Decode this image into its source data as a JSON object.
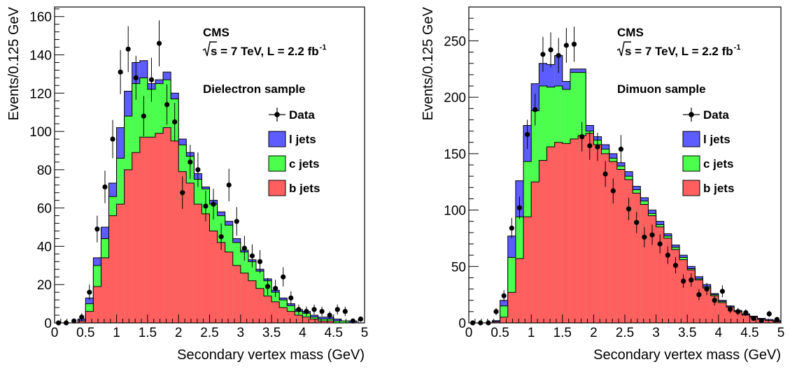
{
  "chart_data": [
    {
      "type": "bar",
      "stacked": true,
      "experiment": "CMS",
      "energy_label": "s = 7 TeV, L = 2.2 fb",
      "lumi_exponent": "-1",
      "sample_label": "Dielectron sample",
      "xlabel": "Secondary vertex mass (GeV)",
      "ylabel": "Events/0.125 GeV",
      "xlim": [
        0,
        5
      ],
      "ylim": [
        0,
        165
      ],
      "bin_width": 0.125,
      "xticks": [
        0,
        0.5,
        1,
        1.5,
        2,
        2.5,
        3,
        3.5,
        4,
        4.5,
        5
      ],
      "xtick_labels": [
        "0",
        "0.5",
        "1",
        "1.5",
        "2",
        "2.5",
        "3",
        "3.5",
        "4",
        "4.5",
        "5"
      ],
      "yticks": [
        0,
        20,
        40,
        60,
        80,
        100,
        120,
        140,
        160
      ],
      "ytick_labels": [
        "0",
        "20",
        "40",
        "60",
        "80",
        "100",
        "120",
        "140",
        "160"
      ],
      "legend_position": "right",
      "legend": [
        {
          "name": "Data",
          "kind": "marker"
        },
        {
          "name": "l jets",
          "kind": "box",
          "color": "#5c5cff"
        },
        {
          "name": "c jets",
          "kind": "box",
          "color": "#4dff4d"
        },
        {
          "name": "b jets",
          "kind": "box",
          "color": "#ff5f5f"
        }
      ],
      "stack_totals": {
        "b": [
          0,
          0,
          0,
          1,
          6,
          19,
          34,
          56,
          62,
          80,
          89,
          97,
          97,
          99,
          102,
          95,
          79,
          73,
          62,
          57,
          48,
          42,
          37,
          30,
          26,
          22,
          18,
          14,
          11,
          8,
          6,
          4,
          3,
          2,
          1,
          1,
          0,
          0,
          0,
          0
        ],
        "bc": [
          0,
          0,
          0,
          1,
          10,
          30,
          44,
          66,
          86,
          108,
          125,
          128,
          122,
          125,
          127,
          117,
          93,
          87,
          75,
          70,
          62,
          56,
          51,
          42,
          37,
          32,
          27,
          22,
          16,
          12,
          9,
          6,
          5,
          3,
          2,
          2,
          1,
          1,
          0,
          0
        ],
        "total": [
          0,
          0,
          0,
          2,
          13,
          34,
          50,
          73,
          102,
          121,
          136,
          137,
          125,
          127,
          131,
          120,
          96,
          89,
          78,
          71,
          64,
          58,
          53,
          44,
          38,
          33,
          28,
          23,
          17,
          13,
          10,
          7,
          6,
          4,
          3,
          3,
          2,
          1,
          1,
          0
        ]
      },
      "data_points": [
        {
          "x": 0.0625,
          "y": 0,
          "err": 0
        },
        {
          "x": 0.1875,
          "y": 0,
          "err": 0
        },
        {
          "x": 0.3125,
          "y": 1,
          "err": 1
        },
        {
          "x": 0.4375,
          "y": 3,
          "err": 2
        },
        {
          "x": 0.5625,
          "y": 16,
          "err": 4
        },
        {
          "x": 0.6875,
          "y": 49,
          "err": 7
        },
        {
          "x": 0.8125,
          "y": 71,
          "err": 8.5
        },
        {
          "x": 0.9375,
          "y": 96,
          "err": 10
        },
        {
          "x": 1.0625,
          "y": 131,
          "err": 11.5
        },
        {
          "x": 1.1875,
          "y": 143,
          "err": 12
        },
        {
          "x": 1.3125,
          "y": 128,
          "err": 11.5
        },
        {
          "x": 1.4375,
          "y": 108,
          "err": 10.5
        },
        {
          "x": 1.5625,
          "y": 127,
          "err": 11.5
        },
        {
          "x": 1.6875,
          "y": 146,
          "err": 12
        },
        {
          "x": 1.8125,
          "y": 114,
          "err": 10.5
        },
        {
          "x": 1.9375,
          "y": 105,
          "err": 10
        },
        {
          "x": 2.0625,
          "y": 68,
          "err": 8.5
        },
        {
          "x": 2.1875,
          "y": 84,
          "err": 9
        },
        {
          "x": 2.3125,
          "y": 80,
          "err": 9
        },
        {
          "x": 2.4375,
          "y": 61,
          "err": 8
        },
        {
          "x": 2.5625,
          "y": 62,
          "err": 8
        },
        {
          "x": 2.6875,
          "y": 45,
          "err": 7
        },
        {
          "x": 2.8125,
          "y": 72,
          "err": 8.5
        },
        {
          "x": 2.9375,
          "y": 53,
          "err": 7.5
        },
        {
          "x": 3.0625,
          "y": 39,
          "err": 6.5
        },
        {
          "x": 3.1875,
          "y": 35,
          "err": 6
        },
        {
          "x": 3.3125,
          "y": 32,
          "err": 6
        },
        {
          "x": 3.4375,
          "y": 19,
          "err": 4.5
        },
        {
          "x": 3.5625,
          "y": 18,
          "err": 4.5
        },
        {
          "x": 3.6875,
          "y": 24,
          "err": 5
        },
        {
          "x": 3.8125,
          "y": 13,
          "err": 3.5
        },
        {
          "x": 3.9375,
          "y": 7,
          "err": 2.6
        },
        {
          "x": 4.0625,
          "y": 6,
          "err": 2.5
        },
        {
          "x": 4.1875,
          "y": 7,
          "err": 2.6
        },
        {
          "x": 4.3125,
          "y": 6,
          "err": 2.5
        },
        {
          "x": 4.4375,
          "y": 4,
          "err": 2
        },
        {
          "x": 4.5625,
          "y": 7,
          "err": 2.6
        },
        {
          "x": 4.6875,
          "y": 6,
          "err": 2.5
        },
        {
          "x": 4.8125,
          "y": 1,
          "err": 1
        },
        {
          "x": 4.9375,
          "y": 2,
          "err": 1.4
        }
      ]
    },
    {
      "type": "bar",
      "stacked": true,
      "experiment": "CMS",
      "energy_label": "s = 7 TeV, L = 2.2 fb",
      "lumi_exponent": "-1",
      "sample_label": "Dimuon sample",
      "xlabel": "Secondary vertex mass (GeV)",
      "ylabel": "Events/0.125 GeV",
      "xlim": [
        0,
        5
      ],
      "ylim": [
        0,
        280
      ],
      "bin_width": 0.125,
      "xticks": [
        0,
        0.5,
        1,
        1.5,
        2,
        2.5,
        3,
        3.5,
        4,
        4.5,
        5
      ],
      "xtick_labels": [
        "0",
        "0.5",
        "1",
        "1.5",
        "2",
        "2.5",
        "3",
        "3.5",
        "4",
        "4.5",
        "5"
      ],
      "yticks": [
        0,
        50,
        100,
        150,
        200,
        250
      ],
      "ytick_labels": [
        "0",
        "50",
        "100",
        "150",
        "200",
        "250"
      ],
      "legend_position": "right",
      "legend": [
        {
          "name": "Data",
          "kind": "marker"
        },
        {
          "name": "l jets",
          "kind": "box",
          "color": "#5c5cff"
        },
        {
          "name": "c jets",
          "kind": "box",
          "color": "#4dff4d"
        },
        {
          "name": "b jets",
          "kind": "box",
          "color": "#ff5f5f"
        }
      ],
      "stack_totals": {
        "b": [
          0,
          0,
          0,
          1,
          5,
          27,
          57,
          94,
          125,
          144,
          156,
          160,
          159,
          163,
          166,
          168,
          158,
          150,
          143,
          136,
          127,
          115,
          105,
          95,
          85,
          75,
          65,
          56,
          47,
          38,
          31,
          24,
          18,
          14,
          10,
          7,
          5,
          3,
          2,
          1
        ],
        "bc": [
          0,
          0,
          0,
          1,
          15,
          58,
          94,
          143,
          188,
          210,
          209,
          210,
          207,
          222,
          222,
          170,
          162,
          154,
          146,
          139,
          130,
          118,
          108,
          97,
          87,
          77,
          67,
          58,
          48,
          39,
          32,
          25,
          19,
          14,
          10,
          7,
          5,
          3,
          2,
          1
        ],
        "total": [
          0,
          0,
          0,
          2,
          20,
          77,
          126,
          175,
          212,
          230,
          229,
          237,
          214,
          225,
          225,
          175,
          165,
          158,
          150,
          142,
          134,
          121,
          111,
          100,
          90,
          79,
          69,
          60,
          50,
          41,
          34,
          26,
          20,
          15,
          11,
          8,
          6,
          4,
          3,
          2
        ]
      },
      "data_points": [
        {
          "x": 0.0625,
          "y": 0,
          "err": 0
        },
        {
          "x": 0.1875,
          "y": 0,
          "err": 0
        },
        {
          "x": 0.3125,
          "y": 0,
          "err": 0
        },
        {
          "x": 0.4375,
          "y": 10,
          "err": 3.2
        },
        {
          "x": 0.5625,
          "y": 24,
          "err": 5
        },
        {
          "x": 0.6875,
          "y": 84,
          "err": 9
        },
        {
          "x": 0.8125,
          "y": 102,
          "err": 10
        },
        {
          "x": 0.9375,
          "y": 167,
          "err": 13
        },
        {
          "x": 1.0625,
          "y": 189,
          "err": 14
        },
        {
          "x": 1.1875,
          "y": 238,
          "err": 15.5
        },
        {
          "x": 1.3125,
          "y": 242,
          "err": 15.5
        },
        {
          "x": 1.4375,
          "y": 237,
          "err": 15.5
        },
        {
          "x": 1.5625,
          "y": 246,
          "err": 15.5
        },
        {
          "x": 1.6875,
          "y": 247,
          "err": 15.5
        },
        {
          "x": 1.8125,
          "y": 165,
          "err": 13
        },
        {
          "x": 1.9375,
          "y": 157,
          "err": 12.5
        },
        {
          "x": 2.0625,
          "y": 156,
          "err": 12.5
        },
        {
          "x": 2.1875,
          "y": 132,
          "err": 11.5
        },
        {
          "x": 2.3125,
          "y": 117,
          "err": 11
        },
        {
          "x": 2.4375,
          "y": 154,
          "err": 12.5
        },
        {
          "x": 2.5625,
          "y": 101,
          "err": 10
        },
        {
          "x": 2.6875,
          "y": 89,
          "err": 9.5
        },
        {
          "x": 2.8125,
          "y": 76,
          "err": 9
        },
        {
          "x": 2.9375,
          "y": 78,
          "err": 9
        },
        {
          "x": 3.0625,
          "y": 70,
          "err": 8.5
        },
        {
          "x": 3.1875,
          "y": 60,
          "err": 7.8
        },
        {
          "x": 3.3125,
          "y": 51,
          "err": 7.2
        },
        {
          "x": 3.4375,
          "y": 37,
          "err": 6
        },
        {
          "x": 3.5625,
          "y": 38,
          "err": 6
        },
        {
          "x": 3.6875,
          "y": 25,
          "err": 5
        },
        {
          "x": 3.8125,
          "y": 30,
          "err": 5.5
        },
        {
          "x": 3.9375,
          "y": 20,
          "err": 4.5
        },
        {
          "x": 4.0625,
          "y": 28,
          "err": 5.3
        },
        {
          "x": 4.1875,
          "y": 12,
          "err": 3.5
        },
        {
          "x": 4.3125,
          "y": 10,
          "err": 3.2
        },
        {
          "x": 4.4375,
          "y": 9,
          "err": 3
        },
        {
          "x": 4.5625,
          "y": 4,
          "err": 2
        },
        {
          "x": 4.6875,
          "y": 2,
          "err": 1.4
        },
        {
          "x": 4.8125,
          "y": 8,
          "err": 2.8
        },
        {
          "x": 4.9375,
          "y": 3,
          "err": 1.7
        }
      ]
    }
  ]
}
